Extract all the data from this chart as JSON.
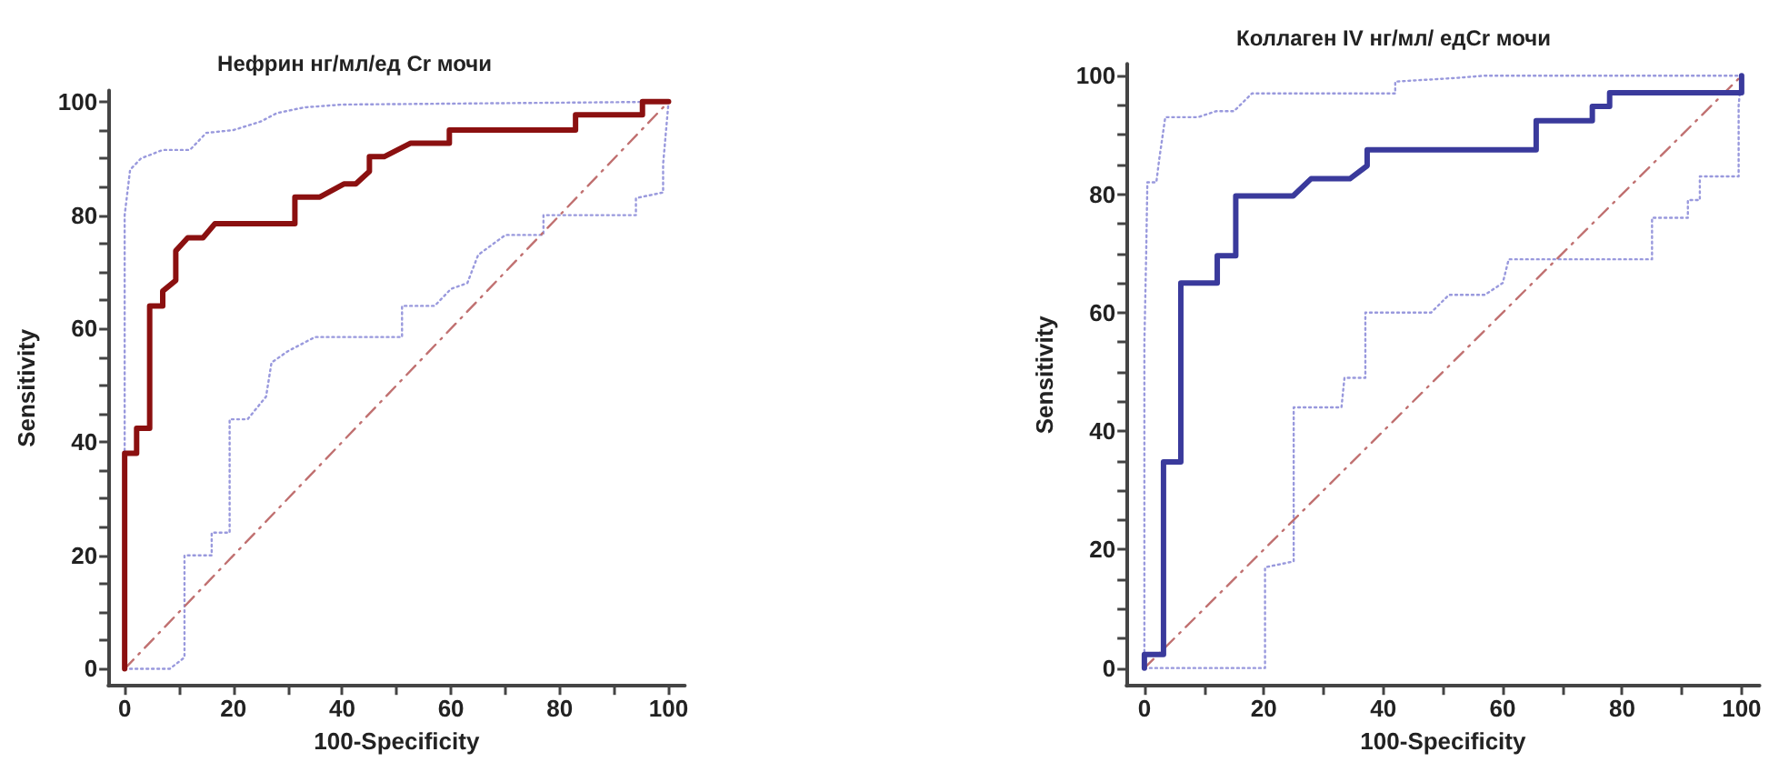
{
  "chart_data": [
    {
      "type": "line",
      "title": "Нефрин нг/мл/ед Cr мочи",
      "xlabel": "100-Specificity",
      "ylabel": "Sensitivity",
      "xlim": [
        -3,
        103
      ],
      "ylim": [
        -3,
        102
      ],
      "xticks": [
        0,
        {
          "value": 10,
          "label": null
        },
        20,
        {
          "value": 30,
          "label": null
        },
        40,
        {
          "value": 50,
          "label": null
        },
        60,
        {
          "value": 70,
          "label": null
        },
        80,
        {
          "value": 90,
          "label": null
        },
        100
      ],
      "yticks": [
        0,
        {
          "value": 5,
          "label": null
        },
        {
          "value": 10,
          "label": null
        },
        {
          "value": 15,
          "label": null
        },
        20,
        {
          "value": 25,
          "label": null
        },
        {
          "value": 30,
          "label": null
        },
        {
          "value": 35,
          "label": null
        },
        40,
        {
          "value": 45,
          "label": null
        },
        {
          "value": 50,
          "label": null
        },
        {
          "value": 55,
          "label": null
        },
        60,
        {
          "value": 65,
          "label": null
        },
        {
          "value": 70,
          "label": null
        },
        {
          "value": 75,
          "label": null
        },
        80,
        {
          "value": 85,
          "label": null
        },
        {
          "value": 90,
          "label": null
        },
        {
          "value": 95,
          "label": null
        },
        100
      ],
      "grid": false,
      "marker": "none",
      "series": [
        {
          "color": "#8b1010",
          "line_style": "solid",
          "x": [
            0,
            0,
            2.2,
            2.2,
            4.6,
            4.6,
            7,
            7,
            9.4,
            9.4,
            11.6,
            14.4,
            16.6,
            31.3,
            31.3,
            35.9,
            40.3,
            42.5,
            45,
            45,
            47.7,
            52.6,
            59.7,
            59.7,
            82.9,
            82.9,
            95.2,
            95.2,
            100
          ],
          "values": [
            0,
            38,
            38,
            42.4,
            42.4,
            64,
            64,
            66.6,
            68.5,
            73.7,
            76,
            76,
            78.5,
            78.5,
            83.2,
            83.2,
            85.5,
            85.5,
            87.7,
            90.3,
            90.3,
            92.7,
            92.7,
            95,
            95,
            97.7,
            97.7,
            100,
            100
          ]
        },
        {
          "color": "#9999dd",
          "line_style": "dotted",
          "x": [
            0,
            0,
            1,
            3,
            7,
            12,
            15,
            20,
            25,
            28,
            33,
            40,
            100
          ],
          "values": [
            0,
            80,
            88,
            90,
            91.5,
            91.5,
            94.5,
            95,
            96.5,
            98,
            99,
            99.5,
            100
          ]
        },
        {
          "color": "#9999dd",
          "line_style": "dotted",
          "x": [
            0,
            8.3,
            11,
            11,
            16,
            16,
            19.3,
            19.3,
            22.6,
            26,
            27,
            30,
            35,
            51,
            51,
            57,
            60,
            63,
            65,
            70,
            77,
            77,
            94,
            94,
            99,
            99,
            100
          ],
          "values": [
            0,
            0,
            2,
            20,
            20,
            24,
            24,
            44,
            44,
            48,
            54,
            56,
            58.5,
            58.5,
            64,
            64,
            67,
            68,
            73,
            76.5,
            76.5,
            80,
            80,
            83,
            84,
            89,
            100
          ]
        },
        {
          "color": "#c07070",
          "line_style": "dashed",
          "x": [
            0,
            100
          ],
          "values": [
            0,
            100
          ]
        }
      ]
    },
    {
      "type": "line",
      "title": "Коллаген IV нг/мл/ едCr мочи",
      "xlabel": "100-Specificity",
      "ylabel": "Sensitivity",
      "xlim": [
        -3,
        103
      ],
      "ylim": [
        -3,
        102
      ],
      "xticks": [
        0,
        {
          "value": 10,
          "label": null
        },
        20,
        {
          "value": 30,
          "label": null
        },
        40,
        {
          "value": 50,
          "label": null
        },
        60,
        {
          "value": 70,
          "label": null
        },
        80,
        {
          "value": 90,
          "label": null
        },
        100
      ],
      "yticks": [
        0,
        {
          "value": 5,
          "label": null
        },
        {
          "value": 10,
          "label": null
        },
        {
          "value": 15,
          "label": null
        },
        20,
        {
          "value": 25,
          "label": null
        },
        {
          "value": 30,
          "label": null
        },
        {
          "value": 35,
          "label": null
        },
        40,
        {
          "value": 45,
          "label": null
        },
        {
          "value": 50,
          "label": null
        },
        {
          "value": 55,
          "label": null
        },
        60,
        {
          "value": 65,
          "label": null
        },
        {
          "value": 70,
          "label": null
        },
        {
          "value": 75,
          "label": null
        },
        80,
        {
          "value": 85,
          "label": null
        },
        {
          "value": 90,
          "label": null
        },
        {
          "value": 95,
          "label": null
        },
        100
      ],
      "grid": false,
      "marker": "none",
      "series": [
        {
          "color": "#3a3a9c",
          "line_style": "solid",
          "x": [
            0,
            0,
            3.2,
            3.2,
            6.1,
            6.1,
            12.2,
            12.2,
            15.3,
            15.3,
            24.9,
            27.9,
            34.4,
            37.3,
            37.3,
            65.6,
            65.6,
            75,
            75,
            77.9,
            77.9,
            100,
            100
          ],
          "values": [
            0,
            2.3,
            2.3,
            34.8,
            34.8,
            65,
            65,
            69.6,
            69.6,
            79.7,
            79.7,
            82.6,
            82.6,
            84.8,
            87.5,
            87.5,
            92.4,
            92.4,
            94.8,
            94.8,
            97.1,
            97.1,
            100
          ]
        },
        {
          "color": "#9999dd",
          "line_style": "dotted",
          "x": [
            0,
            0,
            0.3,
            0.5,
            2,
            2.5,
            3.5,
            9,
            12,
            15,
            18,
            42,
            42,
            52,
            57,
            100
          ],
          "values": [
            0,
            55,
            70,
            82,
            82,
            86,
            93,
            93,
            94,
            94,
            97,
            97,
            99,
            99.6,
            100,
            100
          ]
        },
        {
          "color": "#9999dd",
          "line_style": "dotted",
          "x": [
            0,
            20.2,
            20.2,
            25,
            25,
            27,
            33,
            33.5,
            37,
            37,
            48,
            51,
            57,
            60,
            61,
            70,
            85,
            85,
            91,
            91,
            93,
            93,
            99.5,
            99.5,
            100
          ],
          "values": [
            0,
            0,
            17,
            18,
            44,
            44,
            44,
            49,
            49,
            60,
            60,
            63,
            63,
            65,
            69,
            69,
            69,
            76,
            76,
            79,
            79,
            83,
            83,
            95,
            100
          ]
        },
        {
          "color": "#c07070",
          "line_style": "dashed",
          "x": [
            0,
            100
          ],
          "values": [
            0,
            100
          ]
        }
      ]
    }
  ]
}
